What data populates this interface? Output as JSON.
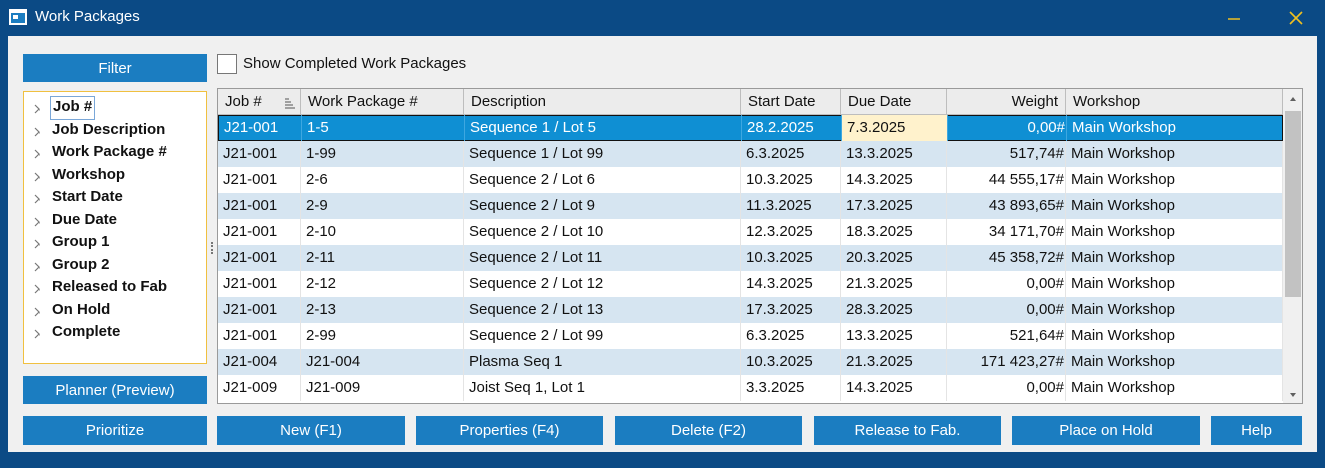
{
  "window": {
    "title": "Work Packages"
  },
  "filter": {
    "button": "Filter",
    "items": [
      "Job #",
      "Job Description",
      "Work Package #",
      "Workshop",
      "Start Date",
      "Due Date",
      "Group 1",
      "Group 2",
      "Released to Fab",
      "On Hold",
      "Complete"
    ],
    "planner_button": "Planner (Preview)"
  },
  "show_completed": {
    "label": "Show Completed Work Packages",
    "checked": false
  },
  "table": {
    "columns": [
      "Job #",
      "Work Package #",
      "Description",
      "Start Date",
      "Due Date",
      "Weight",
      "Workshop"
    ],
    "rows": [
      [
        "J21-001",
        "1-5",
        "Sequence 1 / Lot 5",
        "28.2.2025",
        "7.3.2025",
        "0,00#",
        "Main Workshop"
      ],
      [
        "J21-001",
        "1-99",
        "Sequence 1 / Lot 99",
        "6.3.2025",
        "13.3.2025",
        "517,74#",
        "Main Workshop"
      ],
      [
        "J21-001",
        "2-6",
        "Sequence 2 / Lot 6",
        "10.3.2025",
        "14.3.2025",
        "44 555,17#",
        "Main Workshop"
      ],
      [
        "J21-001",
        "2-9",
        "Sequence 2 / Lot 9",
        "11.3.2025",
        "17.3.2025",
        "43 893,65#",
        "Main Workshop"
      ],
      [
        "J21-001",
        "2-10",
        "Sequence 2 / Lot 10",
        "12.3.2025",
        "18.3.2025",
        "34 171,70#",
        "Main Workshop"
      ],
      [
        "J21-001",
        "2-11",
        "Sequence 2 / Lot 11",
        "10.3.2025",
        "20.3.2025",
        "45 358,72#",
        "Main Workshop"
      ],
      [
        "J21-001",
        "2-12",
        "Sequence 2 / Lot 12",
        "14.3.2025",
        "21.3.2025",
        "0,00#",
        "Main Workshop"
      ],
      [
        "J21-001",
        "2-13",
        "Sequence 2 / Lot 13",
        "17.3.2025",
        "28.3.2025",
        "0,00#",
        "Main Workshop"
      ],
      [
        "J21-001",
        "2-99",
        "Sequence 2 / Lot 99",
        "6.3.2025",
        "13.3.2025",
        "521,64#",
        "Main Workshop"
      ],
      [
        "J21-004",
        "J21-004",
        "Plasma Seq 1",
        "10.3.2025",
        "21.3.2025",
        "171 423,27#",
        "Main Workshop"
      ],
      [
        "J21-009",
        "J21-009",
        "Joist Seq 1, Lot 1",
        "3.3.2025",
        "14.3.2025",
        "0,00#",
        "Main Workshop"
      ]
    ],
    "selected_row": 0
  },
  "buttons": [
    "Prioritize",
    "New (F1)",
    "Properties (F4)",
    "Delete (F2)",
    "Release to Fab.",
    "Place on Hold",
    "Help"
  ]
}
